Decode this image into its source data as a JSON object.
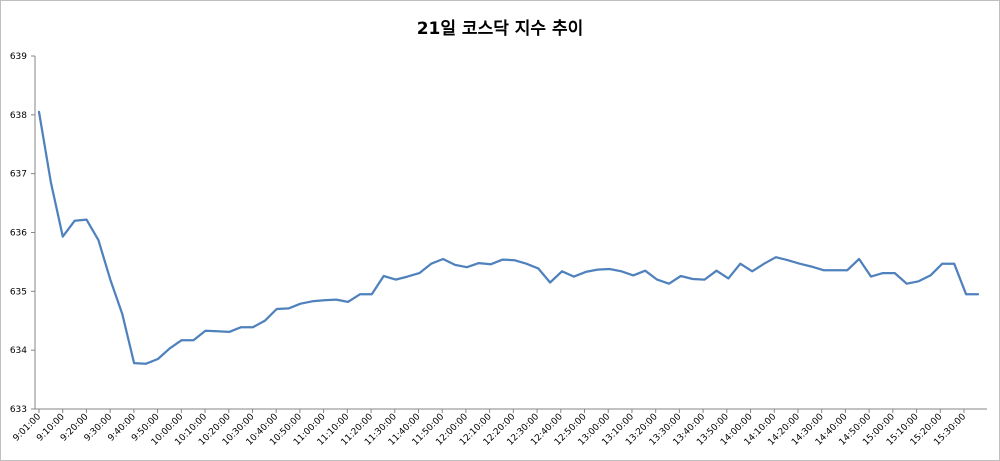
{
  "chart_data": {
    "type": "line",
    "title": "21일 코스닥 지수 추이",
    "xlabel": "",
    "ylabel": "",
    "ylim": [
      633,
      639
    ],
    "yticks": [
      633,
      634,
      635,
      636,
      637,
      638,
      639
    ],
    "grid": false,
    "legend": "none",
    "series_color": "#4f81bd",
    "x_tick_labels": [
      "9:01:00",
      "9:10:00",
      "9:20:00",
      "9:30:00",
      "9:40:00",
      "9:50:00",
      "10:00:00",
      "10:10:00",
      "10:20:00",
      "10:30:00",
      "10:40:00",
      "10:50:00",
      "11:00:00",
      "11:10:00",
      "11:20:00",
      "11:30:00",
      "11:40:00",
      "11:50:00",
      "12:00:00",
      "12:10:00",
      "12:20:00",
      "12:30:00",
      "12:40:00",
      "12:50:00",
      "13:00:00",
      "13:10:00",
      "13:20:00",
      "13:30:00",
      "13:40:00",
      "13:50:00",
      "14:00:00",
      "14:10:00",
      "14:20:00",
      "14:30:00",
      "14:40:00",
      "14:50:00",
      "15:00:00",
      "15:10:00",
      "15:20:00",
      "15:30:00"
    ],
    "series": [
      {
        "values": [
          638.05,
          636.85,
          635.93,
          636.2,
          636.22,
          635.87,
          635.2,
          634.62,
          633.78,
          633.77,
          633.85,
          634.03,
          634.17,
          634.17,
          634.33,
          634.32,
          634.31,
          634.39,
          634.39,
          634.5,
          634.7,
          634.71,
          634.79,
          634.83,
          634.85,
          634.86,
          634.82,
          634.95,
          634.95,
          635.26,
          635.2,
          635.25,
          635.31,
          635.47,
          635.55,
          635.45,
          635.41,
          635.48,
          635.46,
          635.54,
          635.53,
          635.47,
          635.39,
          635.15,
          635.34,
          635.25,
          635.33,
          635.37,
          635.38,
          635.34,
          635.27,
          635.35,
          635.2,
          635.13,
          635.26,
          635.21,
          635.2,
          635.35,
          635.22,
          635.47,
          635.34,
          635.47,
          635.58,
          635.53,
          635.47,
          635.42,
          635.36,
          635.36,
          635.36,
          635.55,
          635.25,
          635.31,
          635.31,
          635.13,
          635.17,
          635.27,
          635.47,
          635.47,
          634.95,
          634.95
        ]
      }
    ]
  }
}
